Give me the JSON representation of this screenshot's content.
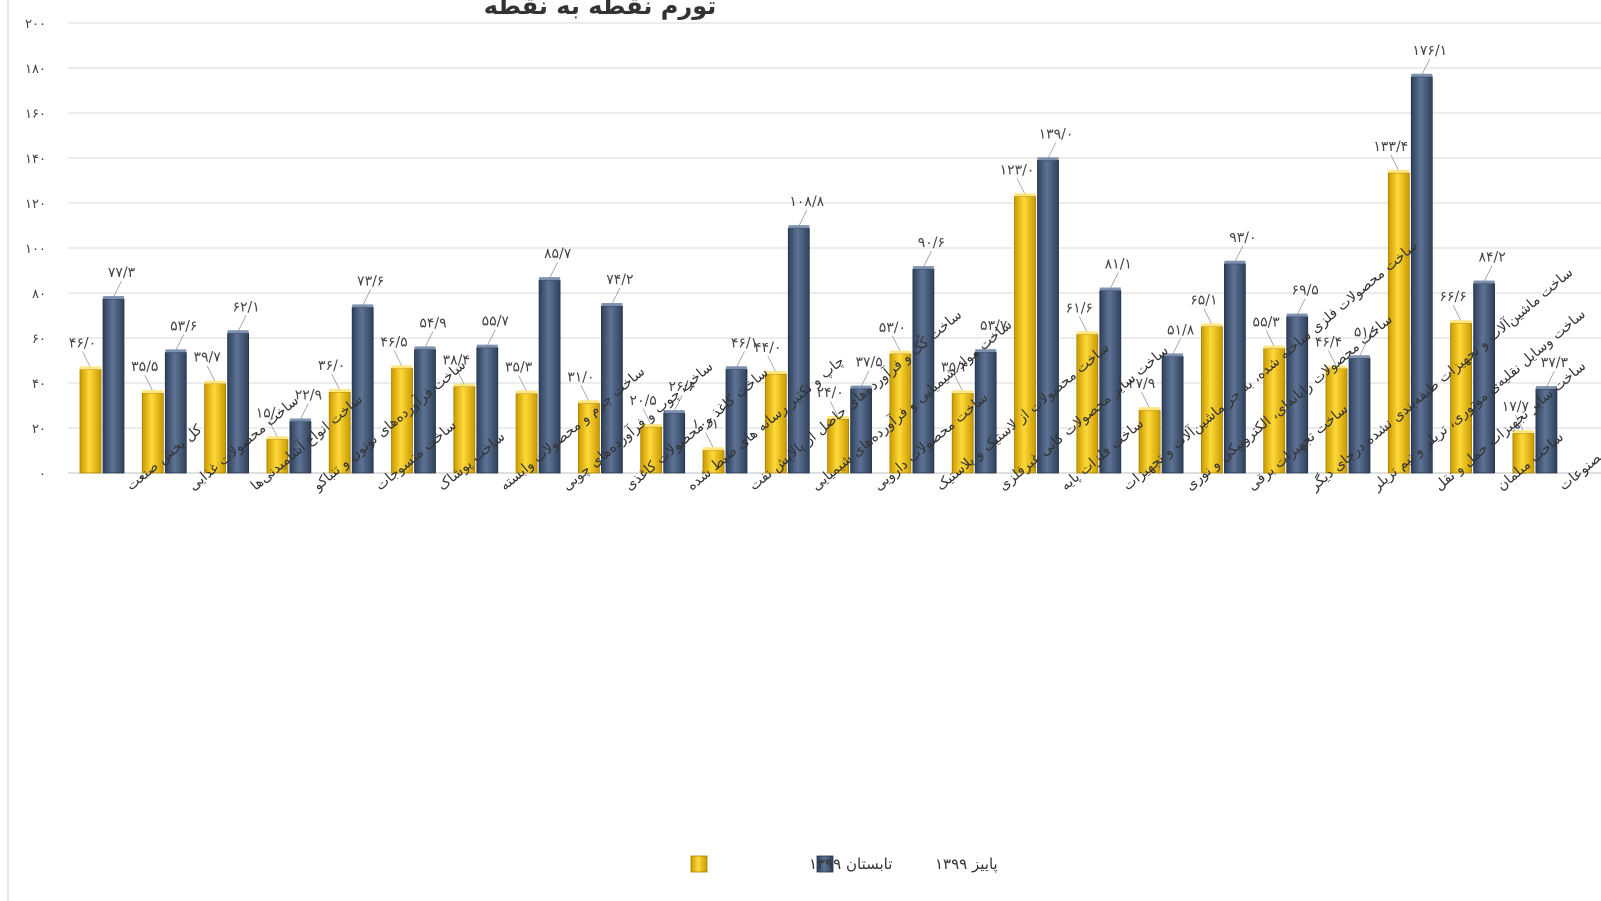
{
  "chart_data": {
    "type": "bar",
    "title": "تورم نقطه به نقطه",
    "xlabel": "",
    "ylabel": "",
    "ylim": [
      0,
      200
    ],
    "yticks": [
      {
        "value": 0,
        "label": "۰"
      },
      {
        "value": 20,
        "label": "۲۰"
      },
      {
        "value": 40,
        "label": "۴۰"
      },
      {
        "value": 60,
        "label": "۶۰"
      },
      {
        "value": 80,
        "label": "۸۰"
      },
      {
        "value": 100,
        "label": "۱۰۰"
      },
      {
        "value": 120,
        "label": "۱۲۰"
      },
      {
        "value": 140,
        "label": "۱۴۰"
      },
      {
        "value": 160,
        "label": "۱۶۰"
      },
      {
        "value": 180,
        "label": "۱۸۰"
      },
      {
        "value": 200,
        "label": "۲۰۰"
      }
    ],
    "grid": true,
    "legend_position": "bottom",
    "categories": [
      "کل بخش صنعت",
      "ساخت محصولات غذایی",
      "ساخت انواع آشامیدنی‌ها",
      "ساخت فرآورده‌های توتون و تنباکو",
      "ساخت منسوجات",
      "ساخت پوشاک",
      "ساخت چرم و محصولات وابسته",
      "ساخت چوب و فرآورده‌های چوبی",
      "ساخت کاغذ و محصولات کاغذی",
      "چاپ و تکثیر رسانه های ضبط شده",
      "ساخت کُک و فرآورده‌های حاصل از پالایش نفت",
      "ساخت مواد شیمیایی و فرآورده‌های شیمیایی",
      "ساخت محصولات دارویی",
      "ساخت محصولات از لاستیک و پلاستیک",
      "ساخت سایر محصولات کانی غیرفلزی",
      "ساخت فلزات پایه",
      "ساخت محصولات فلزی ساخته شده، به جز ماشین‌آلات و تجهیزات",
      "ساخت محصولات رایانه‌ای، الکترونیکی و نوری",
      "ساخت تجهیزات برقی",
      "ساخت ماشین‌آلات و تجهیزات طبقه‌بندی نشده درجای دیگر",
      "ساخت وسایل نقلیه‌ی موتوری، تریلر و نیم تریلر",
      "ساخت سایر تجهیزات حمل و نقل",
      "ساخت مبلمان",
      "ساخت سایر مصنوعات"
    ],
    "series": [
      {
        "name": "تابستان ۱۳۹۹",
        "color": "#F2C200",
        "values": [
          46.0,
          35.5,
          39.7,
          15.0,
          36.0,
          46.5,
          38.4,
          35.3,
          31.0,
          20.5,
          10.1,
          44.0,
          24.0,
          53.0,
          35.4,
          123.0,
          61.6,
          27.9,
          65.1,
          55.3,
          46.4,
          133.4,
          66.6,
          17.7
        ],
        "labels": [
          "۴۶/۰",
          "۳۵/۵",
          "۳۹/۷",
          "۱۵/۰",
          "۳۶/۰",
          "۴۶/۵",
          "۳۸/۴",
          "۳۵/۳",
          "۳۱/۰",
          "۲۰/۵",
          "۱۰/۱",
          "۴۴/۰",
          "۲۴/۰",
          "۵۳/۰",
          "۳۵/۴",
          "۱۲۳/۰",
          "۶۱/۶",
          "۲۷/۹",
          "۶۵/۱",
          "۵۵/۳",
          "۴۶/۴",
          "۱۳۳/۴",
          "۶۶/۶",
          "۱۷/۷"
        ]
      },
      {
        "name": "پاییز ۱۳۹۹",
        "color": "#44597A",
        "values": [
          77.3,
          53.6,
          62.1,
          22.9,
          73.6,
          54.9,
          55.7,
          85.7,
          74.2,
          26.6,
          46.1,
          108.8,
          37.5,
          90.6,
          53.7,
          139.0,
          81.1,
          51.8,
          93.0,
          69.5,
          51.0,
          176.1,
          84.2,
          37.3
        ],
        "labels": [
          "۷۷/۳",
          "۵۳/۶",
          "۶۲/۱",
          "۲۲/۹",
          "۷۳/۶",
          "۵۴/۹",
          "۵۵/۷",
          "۸۵/۷",
          "۷۴/۲",
          "۲۶/۶",
          "۴۶/۱",
          "۱۰۸/۸",
          "۳۷/۵",
          "۹۰/۶",
          "۵۳/۷",
          "۱۳۹/۰",
          "۸۱/۱",
          "۵۱/۸",
          "۹۳/۰",
          "۶۹/۵",
          "۵۱/۰",
          "۱۷۶/۱",
          "۸۴/۲",
          "۳۷/۳"
        ]
      }
    ]
  }
}
